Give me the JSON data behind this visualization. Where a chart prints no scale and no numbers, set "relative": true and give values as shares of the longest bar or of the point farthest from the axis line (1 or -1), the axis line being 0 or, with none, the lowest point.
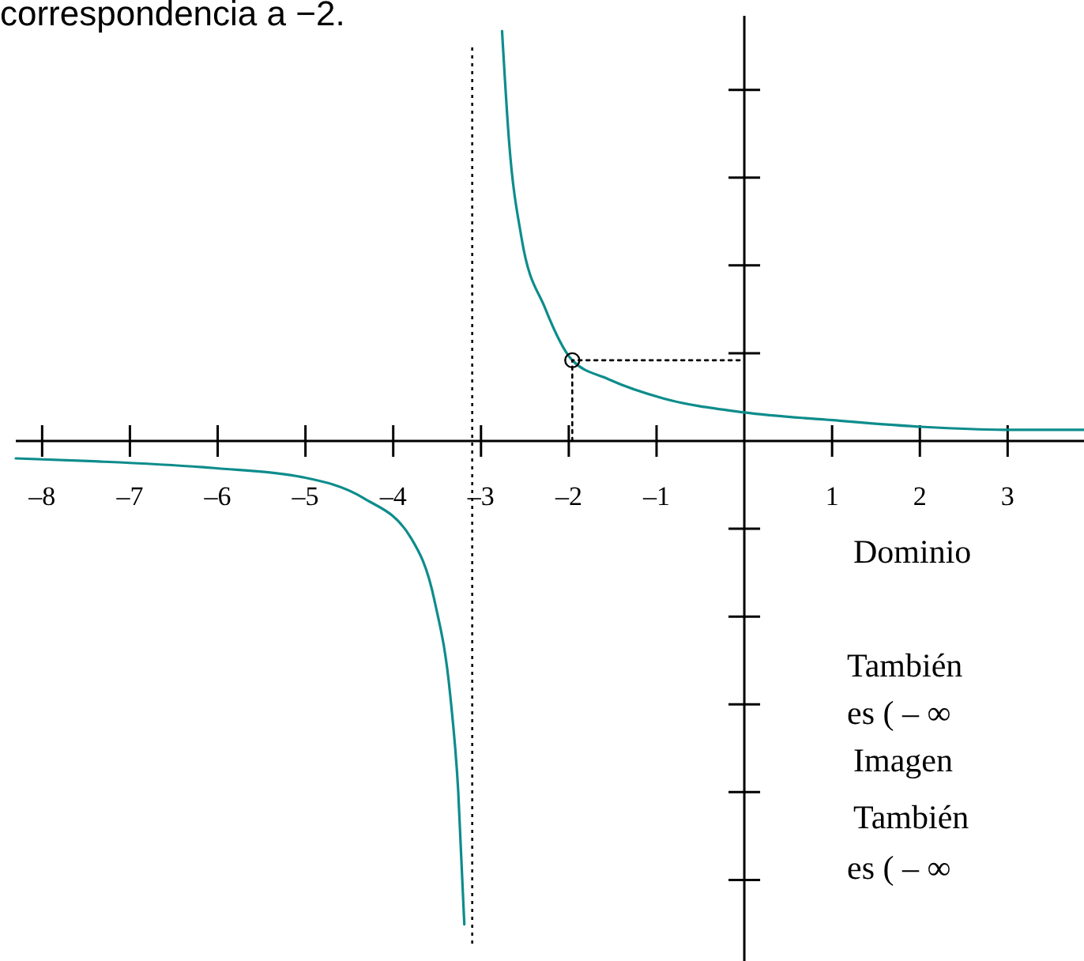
{
  "chart_data": {
    "type": "line",
    "relative": true,
    "xlim": [
      -8.3,
      3.87
    ],
    "xticks": [
      {
        "value": -8,
        "label": "–8"
      },
      {
        "value": -7,
        "label": "–7"
      },
      {
        "value": -6,
        "label": "–6"
      },
      {
        "value": -5,
        "label": "–5"
      },
      {
        "value": -4,
        "label": "–4"
      },
      {
        "value": -3,
        "label": "–3"
      },
      {
        "value": -2,
        "label": "–2"
      },
      {
        "value": -1,
        "label": "–1"
      },
      {
        "value": 1,
        "label": "1"
      },
      {
        "value": 2,
        "label": "2"
      },
      {
        "value": 3,
        "label": "3"
      }
    ],
    "series": [
      {
        "color": "#0e8c8c",
        "x": [
          -8.3,
          -7.41,
          -6.04,
          -5.03,
          -4.34,
          -3.8,
          -3.53,
          -3.35,
          -3.26,
          -3.19
        ],
        "values": [
          -0.036,
          -0.042,
          -0.056,
          -0.075,
          -0.118,
          -0.2,
          -0.33,
          -0.527,
          -0.723,
          -1
        ]
      },
      {
        "color": "#0e8c8c",
        "x": [
          -2.76,
          -2.68,
          -2.54,
          -2.27,
          -1.96,
          -1.55,
          -0.92,
          0,
          1.01,
          2.05,
          3.05,
          3.87
        ],
        "values": [
          0.848,
          0.619,
          0.422,
          0.275,
          0.167,
          0.128,
          0.088,
          0.059,
          0.043,
          0.029,
          0.023,
          0.023
        ]
      },
      {
        "type": "line",
        "color": "#000000",
        "line_style": "dotted",
        "x": [
          -1.96,
          -1.96,
          0
        ],
        "values": [
          0,
          0.167,
          0.167
        ]
      },
      {
        "type": "scatter",
        "color": "#000000",
        "marker": "circle",
        "x": [
          -1.96
        ],
        "values": [
          0.167
        ]
      }
    ],
    "ref_lines": [
      {
        "axis": "x",
        "value": -3.1,
        "color": "#000000",
        "line_style": "dotted"
      }
    ],
    "annotations": [
      "correspondencia a −2.",
      "Dominio",
      "También",
      "es ( – ∞",
      "Imagen",
      "También",
      "es ( – ∞"
    ]
  }
}
